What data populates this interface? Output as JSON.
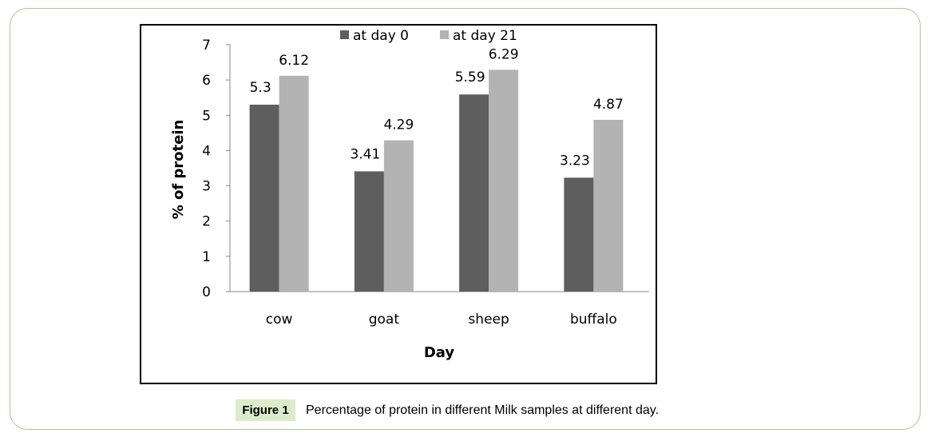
{
  "chart_data": {
    "type": "bar",
    "categories": [
      "cow",
      "goat",
      "sheep",
      "buffalo"
    ],
    "series": [
      {
        "name": "at day 0",
        "values": [
          5.3,
          3.41,
          5.59,
          3.23
        ],
        "labels": [
          "5.3",
          "3.41",
          "5.59",
          "3.23"
        ],
        "color": "#5d5e5d"
      },
      {
        "name": "at day 21",
        "values": [
          6.12,
          4.29,
          6.29,
          4.87
        ],
        "labels": [
          "6.12",
          "4.29",
          "6.29",
          "4.87"
        ],
        "color": "#b3b3b3"
      }
    ],
    "xlabel": "Day",
    "ylabel": "% of protein",
    "ylim": [
      0,
      7
    ],
    "yticks": [
      "0",
      "1",
      "2",
      "3",
      "4",
      "5",
      "6",
      "7"
    ],
    "legend": "top",
    "grid": false
  },
  "figure": {
    "label": "Figure 1",
    "caption": "Percentage of protein in different Milk samples at different day."
  }
}
